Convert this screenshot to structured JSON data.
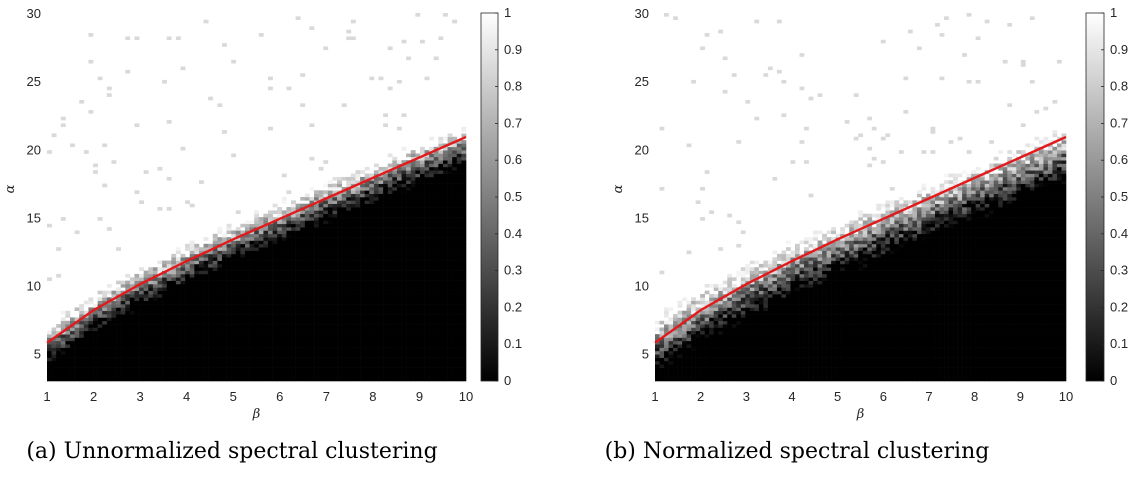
{
  "chart_data": [
    {
      "type": "heatmap",
      "caption": "(a) Unnormalized spectral clustering",
      "xlabel": "β",
      "ylabel": "α",
      "xlim": [
        1,
        10
      ],
      "ylim": [
        3,
        30
      ],
      "xticks": [
        "1",
        "2",
        "3",
        "4",
        "5",
        "6",
        "7",
        "8",
        "9",
        "10"
      ],
      "yticks": [
        "5",
        "10",
        "15",
        "20",
        "25",
        "30"
      ],
      "colorbar": {
        "range": [
          0,
          1
        ],
        "ticks": [
          "0",
          "0.1",
          "0.2",
          "0.3",
          "0.4",
          "0.5",
          "0.6",
          "0.7",
          "0.8",
          "0.9",
          "1"
        ],
        "colormap": "gray"
      },
      "transition_boundary": {
        "beta": [
          1,
          2,
          3,
          4,
          5,
          6,
          7,
          8,
          9,
          10
        ],
        "alpha": [
          4.6,
          6.9,
          8.8,
          10.5,
          12.1,
          13.6,
          15.1,
          16.5,
          17.9,
          19.2
        ]
      },
      "transition_width": 2.2,
      "curve": {
        "color": "#e31a1c",
        "beta": [
          1,
          2,
          3,
          4,
          5,
          6,
          7,
          8,
          9,
          10
        ],
        "alpha": [
          5.8,
          8.2,
          10.1,
          11.8,
          13.4,
          14.9,
          16.4,
          17.9,
          19.4,
          20.9
        ]
      }
    },
    {
      "type": "heatmap",
      "caption": "(b) Normalized spectral clustering",
      "xlabel": "β",
      "ylabel": "α",
      "xlim": [
        1,
        10
      ],
      "ylim": [
        3,
        30
      ],
      "xticks": [
        "1",
        "2",
        "3",
        "4",
        "5",
        "6",
        "7",
        "8",
        "9",
        "10"
      ],
      "yticks": [
        "5",
        "10",
        "15",
        "20",
        "25",
        "30"
      ],
      "colorbar": {
        "range": [
          0,
          1
        ],
        "ticks": [
          "0",
          "0.1",
          "0.2",
          "0.3",
          "0.4",
          "0.5",
          "0.6",
          "0.7",
          "0.8",
          "0.9",
          "1"
        ],
        "colormap": "gray"
      },
      "transition_boundary": {
        "beta": [
          1,
          2,
          3,
          4,
          5,
          6,
          7,
          8,
          9,
          10
        ],
        "alpha": [
          4.2,
          6.3,
          8.1,
          9.7,
          11.2,
          12.6,
          14.0,
          15.4,
          16.8,
          18.2
        ]
      },
      "transition_width": 3.0,
      "curve": {
        "color": "#e31a1c",
        "beta": [
          1,
          2,
          3,
          4,
          5,
          6,
          7,
          8,
          9,
          10
        ],
        "alpha": [
          5.8,
          8.2,
          10.1,
          11.8,
          13.4,
          14.9,
          16.4,
          17.9,
          19.4,
          20.9
        ]
      }
    }
  ]
}
